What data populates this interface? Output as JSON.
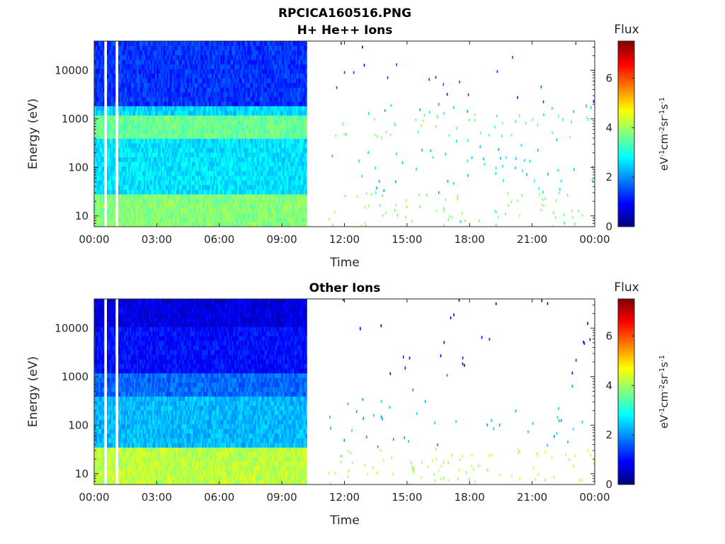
{
  "figure": {
    "title": "RPCICA160516.PNG"
  },
  "chart_data": [
    {
      "type": "heatmap",
      "title": "H+ He++ Ions",
      "xlabel": "Time",
      "ylabel": "Energy (eV)",
      "x_ticks": [
        "00:00",
        "03:00",
        "06:00",
        "09:00",
        "12:00",
        "15:00",
        "18:00",
        "21:00",
        "00:00"
      ],
      "x_range_hours": [
        0,
        24
      ],
      "y_scale": "log",
      "y_ticks": [
        10,
        100,
        1000,
        10000
      ],
      "y_tick_labels": [
        "10",
        "100",
        "1000",
        "10000"
      ],
      "ylim": [
        6,
        40000
      ],
      "colorbar": {
        "title": "Flux",
        "label": "eV-1cm-2sr-1s-1",
        "range": [
          0,
          7.5
        ],
        "ticks": [
          0,
          2,
          4,
          6
        ],
        "colormap": "jet"
      },
      "data_gaps_hours": [
        [
          0.5,
          0.58
        ],
        [
          1.0,
          1.18
        ],
        [
          10.2,
          11.2
        ]
      ],
      "dense_interval_hours": [
        0,
        10.2
      ],
      "sparse_interval_hours": [
        11.2,
        24
      ],
      "energy_bands": [
        {
          "energy_eV": [
            6,
            30
          ],
          "flux": 3.8
        },
        {
          "energy_eV": [
            30,
            400
          ],
          "flux": 2.6
        },
        {
          "energy_eV": [
            400,
            1200
          ],
          "flux": 3.6
        },
        {
          "energy_eV": [
            1200,
            2000
          ],
          "flux": 2.5
        },
        {
          "energy_eV": [
            2000,
            40000
          ],
          "flux": 1.3
        }
      ]
    },
    {
      "type": "heatmap",
      "title": "Other Ions",
      "xlabel": "Time",
      "ylabel": "Energy (eV)",
      "x_ticks": [
        "00:00",
        "03:00",
        "06:00",
        "09:00",
        "12:00",
        "15:00",
        "18:00",
        "21:00",
        "00:00"
      ],
      "x_range_hours": [
        0,
        24
      ],
      "y_scale": "log",
      "y_ticks": [
        10,
        100,
        1000,
        10000
      ],
      "y_tick_labels": [
        "10",
        "100",
        "1000",
        "10000"
      ],
      "ylim": [
        6,
        40000
      ],
      "colorbar": {
        "title": "Flux",
        "label": "eV-1cm-2sr-1s-1",
        "range": [
          0,
          7.5
        ],
        "ticks": [
          0,
          2,
          4,
          6
        ],
        "colormap": "jet"
      },
      "data_gaps_hours": [
        [
          0.5,
          0.58
        ],
        [
          1.0,
          1.18
        ],
        [
          10.2,
          11.2
        ]
      ],
      "dense_interval_hours": [
        0,
        10.2
      ],
      "sparse_interval_hours": [
        11.2,
        24
      ],
      "energy_bands": [
        {
          "energy_eV": [
            6,
            35
          ],
          "flux": 4.2
        },
        {
          "energy_eV": [
            35,
            400
          ],
          "flux": 2.3
        },
        {
          "energy_eV": [
            400,
            1100
          ],
          "flux": 1.7
        },
        {
          "energy_eV": [
            1100,
            11000
          ],
          "flux": 1.0
        },
        {
          "energy_eV": [
            11000,
            40000
          ],
          "flux": 0.7
        }
      ]
    }
  ]
}
